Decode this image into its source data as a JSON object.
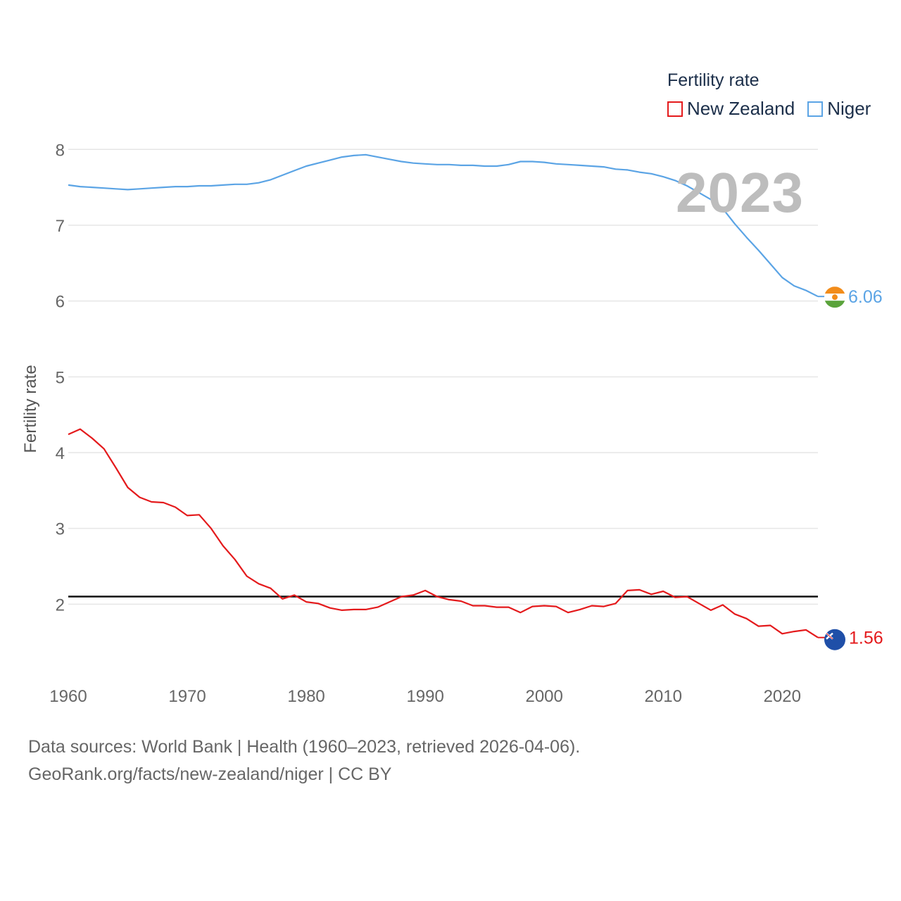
{
  "legend": {
    "title": "Fertility rate"
  },
  "current_year": "2023",
  "footer": {
    "line1": "Data sources: World Bank | Health (1960–2023, retrieved 2026-04-06).",
    "link": "GeoRank.org/facts/new-zealand/niger",
    "license": " | CC BY"
  },
  "colors": {
    "new_zealand": "#e41a1c",
    "niger": "#5ba4e5",
    "reference_line": "#111111",
    "grid": "#e6e6e6",
    "axis_text": "#666666"
  },
  "chart_data": {
    "type": "line",
    "title": "Fertility rate",
    "xlabel": "",
    "ylabel": "Fertility rate",
    "xlim": [
      1960,
      2023
    ],
    "ylim": [
      1.0,
      8.3
    ],
    "xticks": [
      1960,
      1970,
      1980,
      1990,
      2000,
      2010,
      2020
    ],
    "yticks": [
      2,
      3,
      4,
      5,
      6,
      7,
      8
    ],
    "grid": true,
    "legend_position": "top-right",
    "reference_line": {
      "y": 2.1,
      "label": ""
    },
    "x": [
      1960,
      1961,
      1962,
      1963,
      1964,
      1965,
      1966,
      1967,
      1968,
      1969,
      1970,
      1971,
      1972,
      1973,
      1974,
      1975,
      1976,
      1977,
      1978,
      1979,
      1980,
      1981,
      1982,
      1983,
      1984,
      1985,
      1986,
      1987,
      1988,
      1989,
      1990,
      1991,
      1992,
      1993,
      1994,
      1995,
      1996,
      1997,
      1998,
      1999,
      2000,
      2001,
      2002,
      2003,
      2004,
      2005,
      2006,
      2007,
      2008,
      2009,
      2010,
      2011,
      2012,
      2013,
      2014,
      2015,
      2016,
      2017,
      2018,
      2019,
      2020,
      2021,
      2022,
      2023
    ],
    "series": [
      {
        "name": "New Zealand",
        "color": "#e41a1c",
        "end_label": "1.56",
        "flag": "new-zealand-flag",
        "values": [
          4.24,
          4.31,
          4.19,
          4.05,
          3.8,
          3.54,
          3.41,
          3.35,
          3.34,
          3.28,
          3.17,
          3.18,
          3.0,
          2.77,
          2.59,
          2.37,
          2.27,
          2.21,
          2.07,
          2.12,
          2.03,
          2.01,
          1.95,
          1.92,
          1.93,
          1.93,
          1.96,
          2.03,
          2.1,
          2.12,
          2.18,
          2.1,
          2.06,
          2.04,
          1.98,
          1.98,
          1.96,
          1.96,
          1.89,
          1.97,
          1.98,
          1.97,
          1.89,
          1.93,
          1.98,
          1.97,
          2.01,
          2.18,
          2.19,
          2.13,
          2.17,
          2.09,
          2.1,
          2.01,
          1.92,
          1.99,
          1.87,
          1.81,
          1.71,
          1.72,
          1.61,
          1.64,
          1.66,
          1.56
        ]
      },
      {
        "name": "Niger",
        "color": "#5ba4e5",
        "end_label": "6.06",
        "flag": "niger-flag",
        "values": [
          7.53,
          7.51,
          7.5,
          7.49,
          7.48,
          7.47,
          7.48,
          7.49,
          7.5,
          7.51,
          7.51,
          7.52,
          7.52,
          7.53,
          7.54,
          7.54,
          7.56,
          7.6,
          7.66,
          7.72,
          7.78,
          7.82,
          7.86,
          7.9,
          7.92,
          7.93,
          7.9,
          7.87,
          7.84,
          7.82,
          7.81,
          7.8,
          7.8,
          7.79,
          7.79,
          7.78,
          7.78,
          7.8,
          7.84,
          7.84,
          7.83,
          7.81,
          7.8,
          7.79,
          7.78,
          7.77,
          7.74,
          7.73,
          7.7,
          7.68,
          7.64,
          7.59,
          7.52,
          7.43,
          7.34,
          7.22,
          7.02,
          6.84,
          6.67,
          6.49,
          6.31,
          6.2,
          6.14,
          6.06
        ]
      }
    ]
  }
}
